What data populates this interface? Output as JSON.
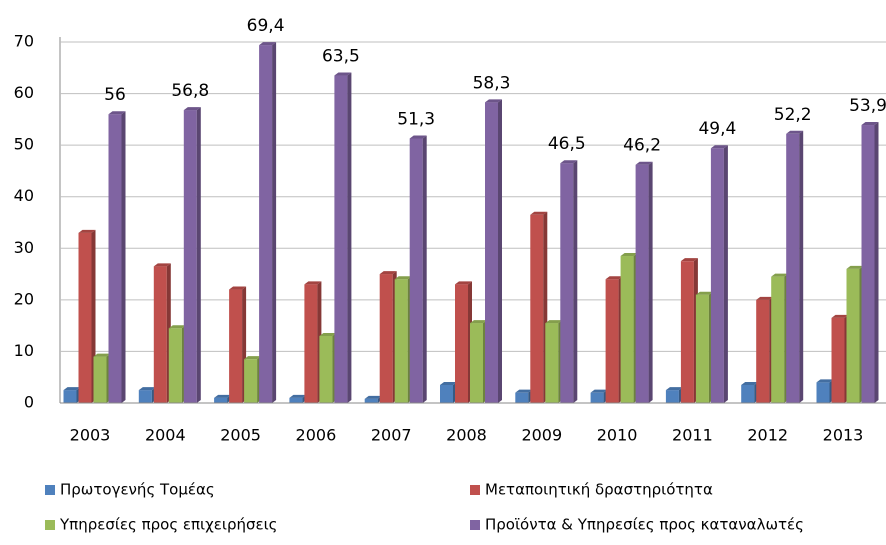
{
  "chart_data": {
    "type": "bar",
    "categories": [
      "2003",
      "2004",
      "2005",
      "2006",
      "2007",
      "2008",
      "2009",
      "2010",
      "2011",
      "2012",
      "2013"
    ],
    "series": [
      {
        "name": "Πρωτογενής Τομέας",
        "color": "#4f81bd",
        "values": [
          2.5,
          2.5,
          1,
          1,
          0.8,
          3.5,
          2,
          2,
          2.5,
          3.5,
          4
        ]
      },
      {
        "name": "Μεταποιητική δραστηριότητα",
        "color": "#c0504d",
        "values": [
          33,
          26.5,
          22,
          23,
          25,
          23,
          36.5,
          24,
          27.5,
          20,
          16.5
        ]
      },
      {
        "name": "Υπηρεσίες προς επιχειρήσεις",
        "color": "#9bbb59",
        "values": [
          9,
          14.5,
          8.5,
          13,
          24,
          15.5,
          15.5,
          28.5,
          21,
          24.5,
          26
        ]
      },
      {
        "name": "Προϊόντα & Υπηρεσίες προς καταναλωτές",
        "color": "#8064a2",
        "values": [
          56,
          56.8,
          69.4,
          63.5,
          51.3,
          58.3,
          46.5,
          46.2,
          49.4,
          52.2,
          53.9
        ],
        "value_labels": [
          "56",
          "56,8",
          "69,4",
          "63,5",
          "51,3",
          "58,3",
          "46,5",
          "46,2",
          "49,4",
          "52,2",
          "53,9"
        ]
      }
    ],
    "ylim": [
      0,
      70
    ],
    "yticks": [
      0,
      10,
      20,
      30,
      40,
      50,
      60,
      70
    ],
    "grid": true,
    "legend": "bottom"
  }
}
